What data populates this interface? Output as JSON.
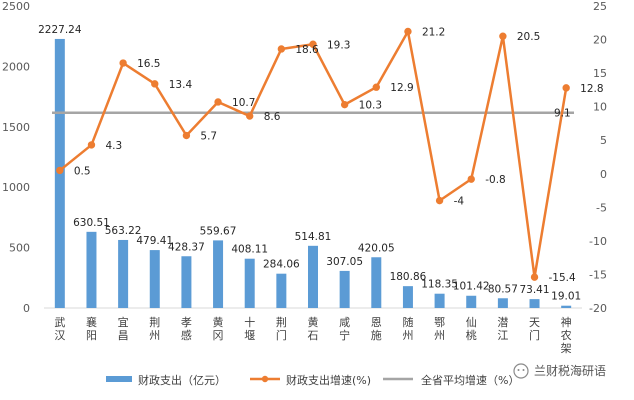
{
  "chart_data": {
    "type": "bar+line",
    "categories": [
      "武汉",
      "襄阳",
      "宜昌",
      "荆州",
      "孝感",
      "黄冈",
      "十堰",
      "荆门",
      "黄石",
      "咸宁",
      "恩施",
      "随州",
      "鄂州",
      "仙桃",
      "潜江",
      "天门",
      "神农架"
    ],
    "series": [
      {
        "name": "财政支出（亿元）",
        "kind": "bar",
        "axis": "left",
        "values": [
          2227.24,
          630.51,
          563.22,
          479.41,
          428.37,
          559.67,
          408.11,
          284.06,
          514.81,
          307.05,
          420.05,
          180.86,
          118.35,
          101.42,
          80.57,
          73.41,
          19.01
        ],
        "labels": [
          "2227.24",
          "630.51",
          "563.22",
          "479.41",
          "428.37",
          "559.67",
          "408.11",
          "284.06",
          "514.81",
          "307.05",
          "420.05",
          "180.86",
          "118.35",
          "101.42",
          "80.57",
          "73.41",
          "19.01"
        ]
      },
      {
        "name": "财政支出增速(%)",
        "kind": "line",
        "axis": "right",
        "values": [
          0.5,
          4.3,
          16.5,
          13.4,
          5.7,
          10.7,
          8.6,
          18.6,
          19.3,
          10.3,
          12.9,
          21.2,
          -4,
          -0.8,
          20.5,
          -15.4,
          12.8
        ],
        "labels": [
          "0.5",
          "4.3",
          "16.5",
          "13.4",
          "5.7",
          "10.7",
          "8.6",
          "18.6",
          "19.3",
          "10.3",
          "12.9",
          "21.2",
          "-4",
          "-0.8",
          "20.5",
          "-15.4",
          "12.8"
        ]
      },
      {
        "name": "全省平均增速（%）",
        "kind": "hline",
        "axis": "right",
        "value": 9.1,
        "label": "9.1"
      }
    ],
    "y_left": {
      "min": 0,
      "max": 2500,
      "step": 500,
      "ticks": [
        "0",
        "500",
        "1000",
        "1500",
        "2000",
        "2500"
      ]
    },
    "y_right": {
      "min": -20,
      "max": 25,
      "step": 5,
      "ticks": [
        "-20",
        "-15",
        "-10",
        "-5",
        "0",
        "5",
        "10",
        "15",
        "20",
        "25"
      ]
    },
    "legend_position": "bottom",
    "grid": false,
    "colors": {
      "bar": "#5b9bd5",
      "line": "#ed7d31",
      "avg": "#a5a5a5",
      "axis": "#d9d9d9"
    }
  },
  "watermark": {
    "text": "兰财税海研语",
    "icon": "wechat-icon"
  }
}
